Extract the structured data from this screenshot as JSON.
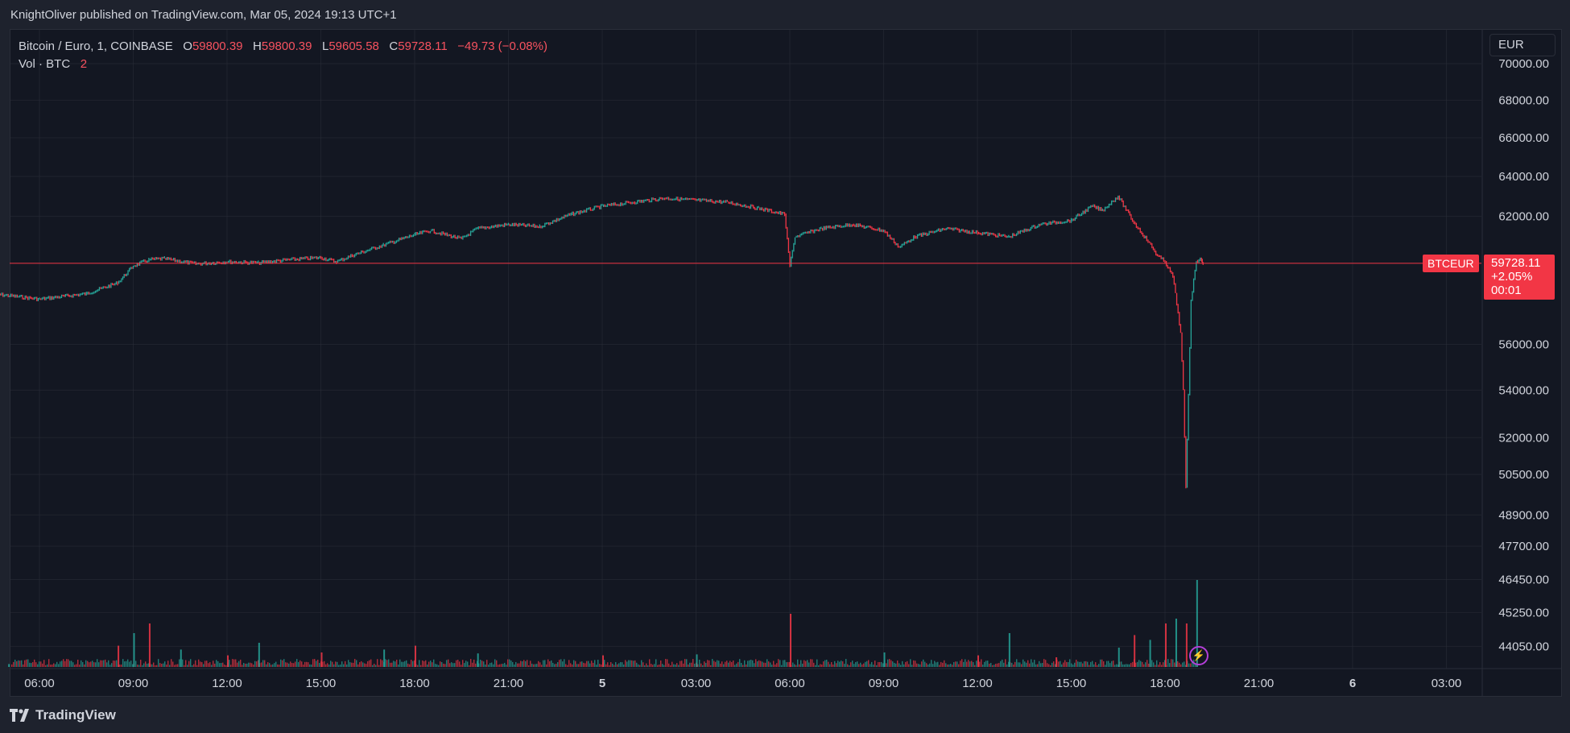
{
  "header": {
    "publish_line": "KnightOliver published on TradingView.com, Mar 05, 2024 19:13 UTC+1"
  },
  "legend": {
    "symbol": "Bitcoin / Euro, 1, COINBASE",
    "o_label": "O",
    "o_value": "59800.39",
    "h_label": "H",
    "h_value": "59800.39",
    "l_label": "L",
    "l_value": "59605.58",
    "c_label": "C",
    "c_value": "59728.11",
    "change": "−49.73 (−0.08%)",
    "vol_label": "Vol · BTC",
    "vol_value": "2"
  },
  "currency_selector": "EUR",
  "last_price": {
    "symbol": "BTCEUR",
    "price": "59728.11",
    "change_pct": "+2.05%",
    "countdown": "00:01"
  },
  "footer": {
    "brand": "TradingView"
  },
  "colors": {
    "up": "#26a69a",
    "down": "#f23645",
    "background": "#131722",
    "grid": "#2a2e39",
    "text": "#d1d4dc"
  },
  "icons": {
    "flash": "lightning-icon",
    "logo": "tradingview-logo-icon"
  },
  "chart_data": {
    "type": "line",
    "series": [
      {
        "x": [
          "Mar 4 04:30",
          "Mar 4 06:00",
          "Mar 4 07:30",
          "Mar 4 08:30",
          "Mar 4 09:00",
          "Mar 4 09:30",
          "Mar 4 10:00",
          "Mar 4 11:00",
          "Mar 4 12:00",
          "Mar 4 13:00",
          "Mar 4 14:00",
          "Mar 4 15:00",
          "Mar 4 15:30",
          "Mar 4 16:00",
          "Mar 4 17:00",
          "Mar 4 18:00",
          "Mar 4 18:30",
          "Mar 4 19:30",
          "Mar 4 20:00",
          "Mar 4 21:00",
          "Mar 4 22:00",
          "Mar 4 23:00",
          "Mar 5 00:00",
          "Mar 5 01:00",
          "Mar 5 02:00",
          "Mar 5 03:00",
          "Mar 5 04:00",
          "Mar 5 05:00",
          "Mar 5 05:50",
          "Mar 5 06:00",
          "Mar 5 06:10",
          "Mar 5 07:00",
          "Mar 5 08:00",
          "Mar 5 09:00",
          "Mar 5 09:30",
          "Mar 5 10:00",
          "Mar 5 11:00",
          "Mar 5 12:00",
          "Mar 5 13:00",
          "Mar 5 14:00",
          "Mar 5 15:00",
          "Mar 5 15:40",
          "Mar 5 16:00",
          "Mar 5 16:30",
          "Mar 5 17:00",
          "Mar 5 17:30",
          "Mar 5 17:45",
          "Mar 5 18:00",
          "Mar 5 18:15",
          "Mar 5 18:20",
          "Mar 5 18:30",
          "Mar 5 18:35",
          "Mar 5 18:40",
          "Mar 5 18:50",
          "Mar 5 19:00",
          "Mar 5 19:10",
          "Mar 5 19:13"
        ],
        "y": [
          58300,
          58050,
          58300,
          58800,
          59600,
          59900,
          59950,
          59700,
          59800,
          59750,
          59900,
          60000,
          59800,
          60100,
          60600,
          61100,
          61300,
          60900,
          61400,
          61600,
          61500,
          62100,
          62500,
          62700,
          62900,
          62800,
          62700,
          62400,
          62100,
          59600,
          61000,
          61400,
          61600,
          61300,
          60500,
          61000,
          61400,
          61200,
          61000,
          61600,
          61800,
          62500,
          62300,
          63000,
          61700,
          60700,
          60100,
          59800,
          59100,
          58300,
          56500,
          54000,
          50000,
          58000,
          59850,
          59900,
          59728
        ]
      }
    ],
    "volume": {
      "x": [
        "Mar 4 05:00",
        "Mar 4 08:30",
        "Mar 4 09:00",
        "Mar 4 09:30",
        "Mar 4 10:30",
        "Mar 4 12:00",
        "Mar 4 13:00",
        "Mar 4 15:00",
        "Mar 4 17:00",
        "Mar 4 18:00",
        "Mar 4 20:00",
        "Mar 5 00:00",
        "Mar 5 03:00",
        "Mar 5 06:00",
        "Mar 5 09:00",
        "Mar 5 12:00",
        "Mar 5 13:00",
        "Mar 5 14:30",
        "Mar 5 16:30",
        "Mar 5 17:00",
        "Mar 5 17:30",
        "Mar 5 18:00",
        "Mar 5 18:20",
        "Mar 5 18:40",
        "Mar 5 19:00"
      ],
      "values": [
        3,
        22,
        35,
        45,
        18,
        12,
        25,
        15,
        18,
        22,
        14,
        12,
        13,
        55,
        15,
        12,
        35,
        10,
        20,
        33,
        28,
        45,
        50,
        45,
        90
      ]
    },
    "y_ticks": [
      "70000.00",
      "68000.00",
      "66000.00",
      "64000.00",
      "62000.00",
      "56000.00",
      "54000.00",
      "52000.00",
      "50500.00",
      "48900.00",
      "47700.00",
      "46450.00",
      "45250.00",
      "44050.00"
    ],
    "x_ticks": [
      "06:00",
      "09:00",
      "12:00",
      "15:00",
      "18:00",
      "21:00",
      "5",
      "03:00",
      "06:00",
      "09:00",
      "12:00",
      "15:00",
      "18:00",
      "21:00",
      "6",
      "03:00"
    ],
    "y_scale": "log",
    "grid": true
  }
}
